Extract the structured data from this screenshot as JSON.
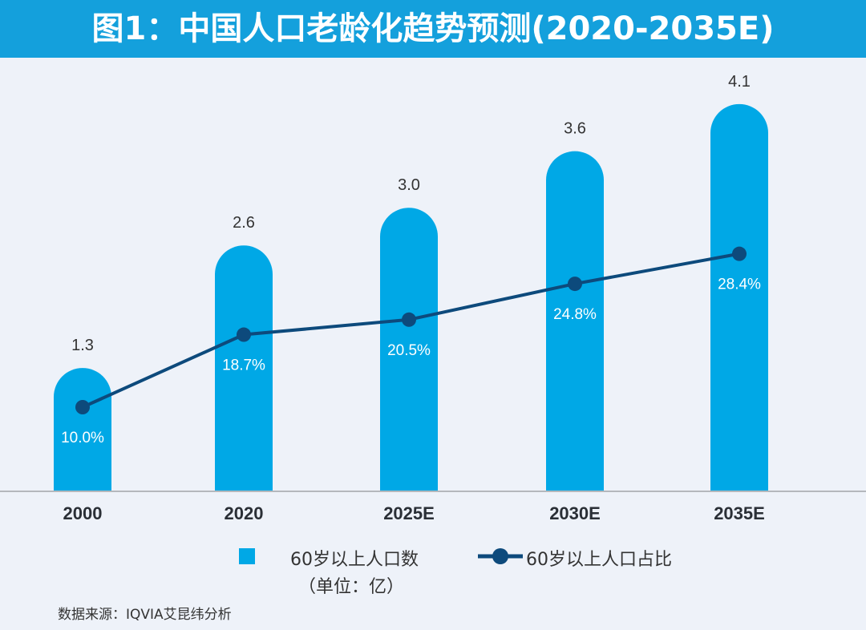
{
  "chart_data": {
    "type": "bar+line",
    "title": "图1：中国人口老龄化趋势预测(2020-2035E)",
    "categories": [
      "2000",
      "2020",
      "2025E",
      "2030E",
      "2035E"
    ],
    "series": [
      {
        "name": "60岁以上人口数（单位：亿）",
        "type": "bar",
        "values": [
          1.3,
          2.6,
          3.0,
          3.6,
          4.1
        ],
        "labels": [
          "1.3",
          "2.6",
          "3.0",
          "3.6",
          "4.1"
        ],
        "color": "#00a8e6"
      },
      {
        "name": "60岁以上人口占比",
        "type": "line",
        "values": [
          10.0,
          18.7,
          20.5,
          24.8,
          28.4
        ],
        "labels": [
          "10.0%",
          "18.7%",
          "20.5%",
          "24.8%",
          "28.4%"
        ],
        "color": "#0d4a7c"
      }
    ],
    "legend_position": "bottom",
    "grid": false
  },
  "legend": {
    "bar_line1": "60岁以上人口数",
    "bar_line2": "（单位：亿）",
    "line": "60岁以上人口占比"
  },
  "source": "数据来源：IQVIA艾昆纬分析"
}
